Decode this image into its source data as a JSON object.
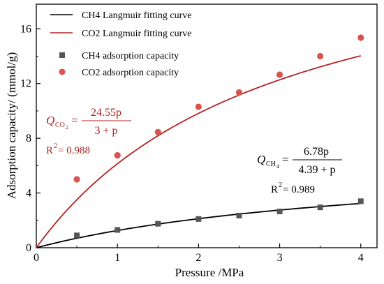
{
  "chart_data": {
    "type": "scatter",
    "xlabel": "Pressure  /MPa",
    "ylabel": "Adsorption capacity/  (mmol/g)",
    "xlim": [
      0,
      4.2
    ],
    "ylim": [
      0,
      17.8
    ],
    "x_ticks": [
      "0",
      "1",
      "2",
      "3",
      "4"
    ],
    "y_ticks": [
      "0",
      "4",
      "8",
      "12",
      "16"
    ],
    "x_tick_values": [
      0,
      1,
      2,
      3,
      4
    ],
    "y_tick_values": [
      0,
      4,
      8,
      12,
      16
    ],
    "grid": false,
    "legend_position": "top-left",
    "series": [
      {
        "name": "CH4  Langmuir  fitting curve",
        "kind": "curve",
        "model": "langmuir",
        "qmax": 6.78,
        "b": 4.39,
        "x_range": [
          0,
          4
        ],
        "color": "#000000"
      },
      {
        "name": "CO2  Langmuir  fitting curve",
        "kind": "curve",
        "model": "langmuir",
        "qmax": 24.55,
        "b": 3,
        "x_range": [
          0,
          4
        ],
        "color": "#b22222"
      },
      {
        "name": "CH4  adsorption capacity",
        "kind": "points",
        "marker": "square",
        "color": "#555555",
        "x": [
          0.5,
          1.0,
          1.5,
          2.0,
          2.5,
          3.0,
          3.5,
          4.0
        ],
        "y": [
          0.9,
          1.3,
          1.75,
          2.1,
          2.35,
          2.65,
          2.95,
          3.4
        ]
      },
      {
        "name": "CO2  adsorption capacity",
        "kind": "points",
        "marker": "circle",
        "color": "#d9534f",
        "x": [
          0.5,
          1.0,
          1.5,
          2.0,
          2.5,
          3.0,
          3.5,
          4.0
        ],
        "y": [
          5.0,
          6.75,
          8.45,
          10.3,
          11.35,
          12.65,
          14.0,
          15.35
        ]
      }
    ],
    "annotations": {
      "co2_formula": {
        "q_symbol": "Q",
        "q_sub": "CO",
        "q_sub2": "2",
        "numerator": "24.55p",
        "denominator": "3 + p",
        "r2_label": "R",
        "r2_sup": "2",
        "r2_value": "= 0.988",
        "color": "#b22222"
      },
      "ch4_formula": {
        "q_symbol": "Q",
        "q_sub": "CH",
        "q_sub2": "4",
        "numerator": "6.78p",
        "denominator": "4.39 + p",
        "r2_label": "R",
        "r2_sup": "2",
        "r2_value": "= 0.989",
        "color": "#000000"
      }
    }
  }
}
